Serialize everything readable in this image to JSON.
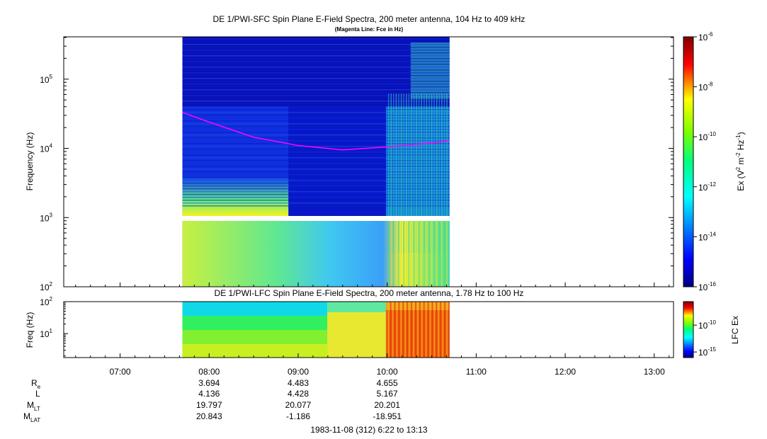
{
  "chart_data": [
    {
      "type": "heatmap",
      "title": "DE 1/PWI-SFC  Spin Plane E-Field Spectra, 200 meter antenna, 104 Hz to 409 kHz",
      "subtitle": "(Magenta Line: Fce in Hz)",
      "ylabel": "Frequency (Hz)",
      "yscale": "log",
      "ylim": [
        100,
        409000
      ],
      "y_ticks": [
        {
          "base": "10",
          "exp": "2"
        },
        {
          "base": "10",
          "exp": "3"
        },
        {
          "base": "10",
          "exp": "4"
        },
        {
          "base": "10",
          "exp": "5"
        }
      ],
      "data_time_range": [
        "07:42",
        "10:42"
      ],
      "fce_line": {
        "color": "#ff00ff",
        "time": [
          "07:42",
          "08:00",
          "08:30",
          "09:00",
          "09:30",
          "10:00",
          "10:30",
          "10:42"
        ],
        "freq_hz": [
          33000,
          24000,
          14500,
          11000,
          9500,
          10500,
          12000,
          13000
        ]
      },
      "colorbar": {
        "label_parts": {
          "a": "Ex (V",
          "sup1": "2",
          "b": " m",
          "sup2": "-2",
          "c": " Hz",
          "sup3": "-1",
          "d": ")"
        },
        "scale": "log",
        "range": [
          1e-16,
          1e-06
        ],
        "ticks": [
          {
            "base": "10",
            "exp": "-6"
          },
          {
            "base": "10",
            "exp": "-8"
          },
          {
            "base": "10",
            "exp": "-10"
          },
          {
            "base": "10",
            "exp": "-12"
          },
          {
            "base": "10",
            "exp": "-14"
          },
          {
            "base": "10",
            "exp": "-16"
          }
        ]
      }
    },
    {
      "type": "heatmap",
      "title": "DE 1/PWI-LFC  Spin Plane E-Field Spectra, 200 meter antenna, 1.78 Hz to 100 Hz",
      "ylabel": "Freq (Hz)",
      "yscale": "log",
      "ylim": [
        1.78,
        100
      ],
      "y_ticks": [
        {
          "base": "10",
          "exp": "1"
        },
        {
          "base": "10",
          "exp": "2"
        }
      ],
      "colorbar": {
        "label": "LFC Ex",
        "ticks": [
          {
            "base": "10",
            "exp": "-10"
          },
          {
            "base": "10",
            "exp": "-15"
          }
        ]
      }
    }
  ],
  "x_axis": {
    "start": "06:22",
    "end": "13:13",
    "tick_labels": [
      "07:00",
      "08:00",
      "09:00",
      "10:00",
      "11:00",
      "12:00",
      "13:00"
    ]
  },
  "ephemeris": {
    "labels": {
      "re_main": "R",
      "re_sub": "e",
      "l": "L",
      "mlt_main": "M",
      "mlt_sub": "LT",
      "mlat_main": "M",
      "mlat_sub": "LAT"
    },
    "columns": [
      {
        "time": "08:00",
        "re": "3.694",
        "l": "4.136",
        "mlt": "19.797",
        "mlat": "20.843"
      },
      {
        "time": "09:00",
        "re": "4.483",
        "l": "4.428",
        "mlt": "20.077",
        "mlat": "-1.186"
      },
      {
        "time": "10:00",
        "re": "4.655",
        "l": "5.167",
        "mlt": "20.201",
        "mlat": "-18.951"
      }
    ]
  },
  "footer": "1983-11-08 (312) 6:22 to 13:13"
}
